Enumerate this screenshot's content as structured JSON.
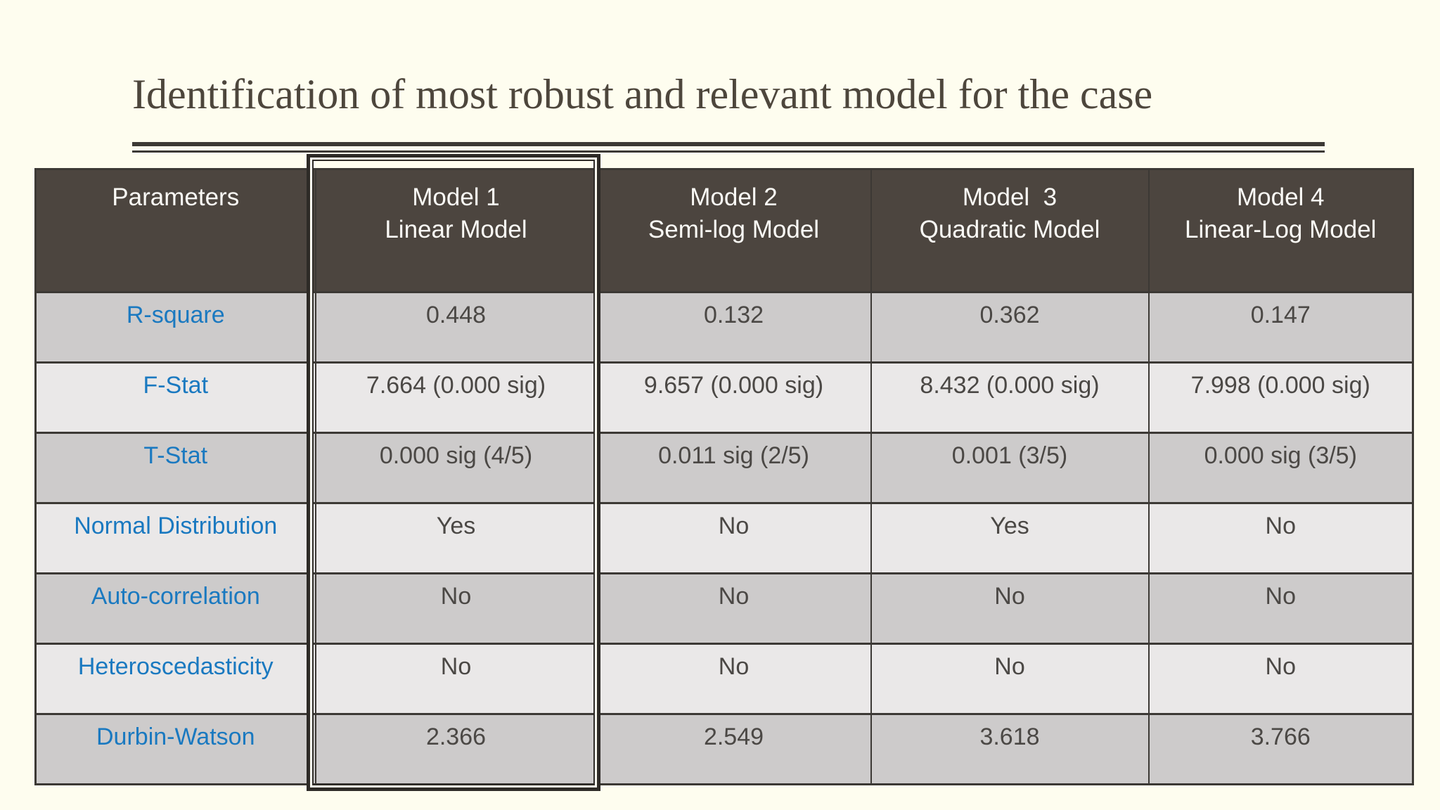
{
  "slide": {
    "title": "Identification of most robust and relevant model for the case"
  },
  "colors": {
    "background": "#FEFDEF",
    "title_text": "#4D463C",
    "border": "#3C3935",
    "header_bg": "#4C453F",
    "header_text": "#FBFAF6",
    "row_dark": "#CDCBCB",
    "row_light": "#EAE8E8",
    "label_blue": "#1A79C0",
    "value_text": "#4B4845",
    "highlight_border": "#2E2B27"
  },
  "table": {
    "columns": [
      {
        "label": "Parameters"
      },
      {
        "label": "Model 1\nLinear Model"
      },
      {
        "label": "Model 2\nSemi-log Model"
      },
      {
        "label": "Model  3\nQuadratic Model"
      },
      {
        "label": "Model 4\nLinear-Log Model"
      }
    ],
    "rows": [
      {
        "parameter": "R-square",
        "values": [
          "0.448",
          "0.132",
          "0.362",
          "0.147"
        ]
      },
      {
        "parameter": "F-Stat",
        "values": [
          "7.664 (0.000 sig)",
          "9.657 (0.000 sig)",
          "8.432 (0.000 sig)",
          "7.998 (0.000 sig)"
        ]
      },
      {
        "parameter": "T-Stat",
        "values": [
          "0.000 sig (4/5)",
          "0.011 sig (2/5)",
          "0.001 (3/5)",
          "0.000 sig (3/5)"
        ]
      },
      {
        "parameter": "Normal Distribution",
        "values": [
          "Yes",
          "No",
          "Yes",
          "No"
        ]
      },
      {
        "parameter": "Auto-correlation",
        "values": [
          "No",
          "No",
          "No",
          "No"
        ]
      },
      {
        "parameter": "Heteroscedasticity",
        "values": [
          "No",
          "No",
          "No",
          "No"
        ]
      },
      {
        "parameter": "Durbin-Watson",
        "values": [
          "2.366",
          "2.549",
          "3.618",
          "3.766"
        ]
      }
    ],
    "highlighted_column": "Model 1"
  },
  "chart_data": {
    "type": "table",
    "title": "Identification of most robust and relevant model for the case",
    "columns": [
      "Parameters",
      "Model 1 Linear Model",
      "Model 2 Semi-log Model",
      "Model 3 Quadratic Model",
      "Model 4 Linear-Log Model"
    ],
    "rows": [
      [
        "R-square",
        "0.448",
        "0.132",
        "0.362",
        "0.147"
      ],
      [
        "F-Stat",
        "7.664 (0.000 sig)",
        "9.657 (0.000 sig)",
        "8.432 (0.000 sig)",
        "7.998 (0.000 sig)"
      ],
      [
        "T-Stat",
        "0.000 sig (4/5)",
        "0.011 sig (2/5)",
        "0.001 (3/5)",
        "0.000 sig (3/5)"
      ],
      [
        "Normal Distribution",
        "Yes",
        "No",
        "Yes",
        "No"
      ],
      [
        "Auto-correlation",
        "No",
        "No",
        "No",
        "No"
      ],
      [
        "Heteroscedasticity",
        "No",
        "No",
        "No",
        "No"
      ],
      [
        "Durbin-Watson",
        "2.366",
        "2.549",
        "3.618",
        "3.766"
      ]
    ],
    "annotations": [
      "Model 1 column outlined with a double-line highlight box"
    ]
  }
}
